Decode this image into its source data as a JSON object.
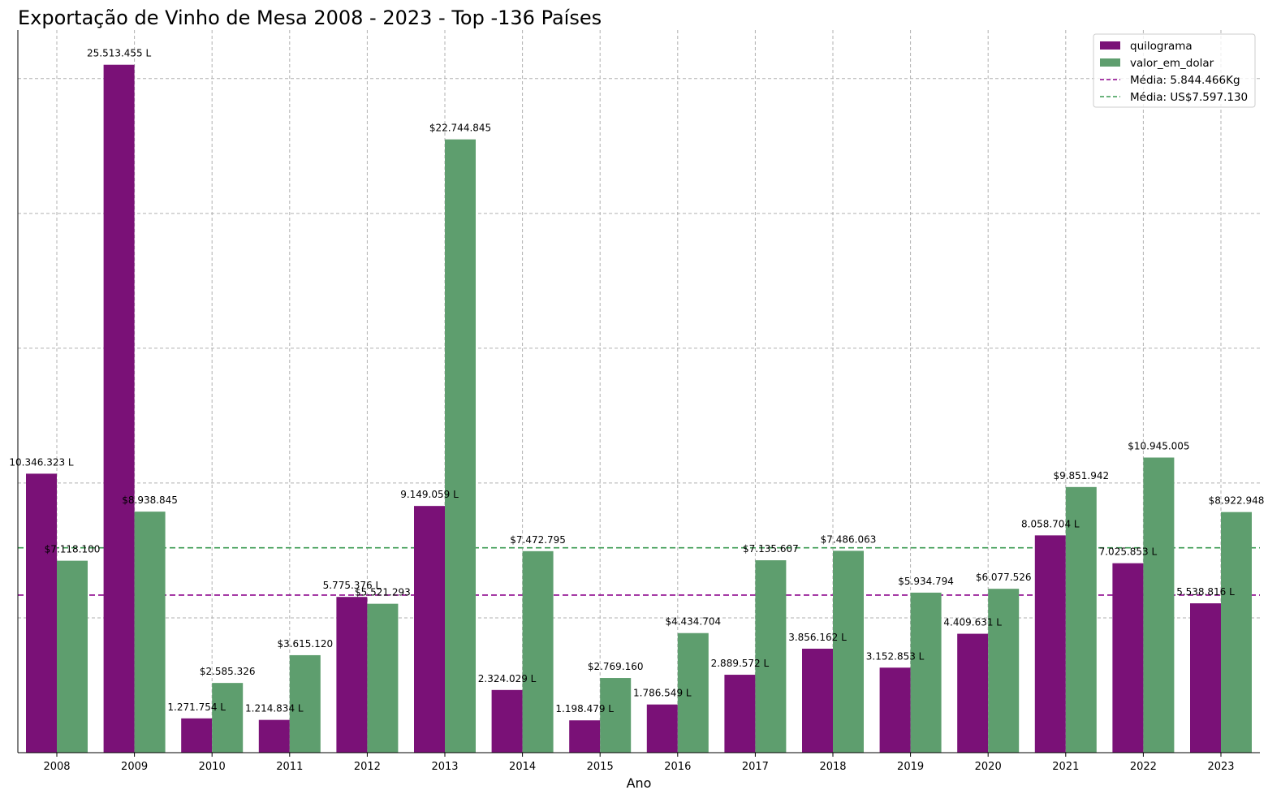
{
  "chart_data": {
    "type": "bar",
    "title": "Exportação de Vinho de Mesa 2008 - 2023 - Top -136 Países",
    "xlabel": "Ano",
    "ylabel": "",
    "ylim": [
      0,
      26800000
    ],
    "grid": true,
    "legend_position": "top-right",
    "categories": [
      "2008",
      "2009",
      "2010",
      "2011",
      "2012",
      "2013",
      "2014",
      "2015",
      "2016",
      "2017",
      "2018",
      "2019",
      "2020",
      "2021",
      "2022",
      "2023"
    ],
    "series": [
      {
        "name": "quilograma",
        "color": "#7a1177",
        "values": [
          10346323,
          25513455,
          1271754,
          1214834,
          5775376,
          9149059,
          2324029,
          1198479,
          1786549,
          2889572,
          3856162,
          3152853,
          4409631,
          8058704,
          7025853,
          5538816
        ],
        "labels": [
          "10.346.323 L",
          "25.513.455 L",
          "1.271.754 L",
          "1.214.834 L",
          "5.775.376 L",
          "9.149.059 L",
          "2.324.029 L",
          "1.198.479 L",
          "1.786.549 L",
          "2.889.572 L",
          "3.856.162 L",
          "3.152.853 L",
          "4.409.631 L",
          "8.058.704 L",
          "7.025.853 L",
          "5.538.816 L"
        ]
      },
      {
        "name": "valor_em_dolar",
        "color": "#5e9e6e",
        "values": [
          7118100,
          8938845,
          2585326,
          3615120,
          5521293,
          22744845,
          7472795,
          2769160,
          4434704,
          7135607,
          7486063,
          5934794,
          6077526,
          9851942,
          10945005,
          8922948
        ],
        "labels": [
          "$7.118.100",
          "$8.938.845",
          "$2.585.326",
          "$3.615.120",
          "$5.521.293",
          "$22.744.845",
          "$7.472.795",
          "$2.769.160",
          "$4.434.704",
          "$7.135.607",
          "$7.486.063",
          "$5.934.794",
          "$6.077.526",
          "$9.851.942",
          "$10.945.005",
          "$8.922.948"
        ]
      }
    ],
    "mean_lines": [
      {
        "label": "Média: 5.844.466Kg",
        "value": 5844466,
        "color": "#8b008b"
      },
      {
        "label": "Média: US$7.597.130",
        "value": 7597130,
        "color": "#3a9a50"
      }
    ]
  }
}
